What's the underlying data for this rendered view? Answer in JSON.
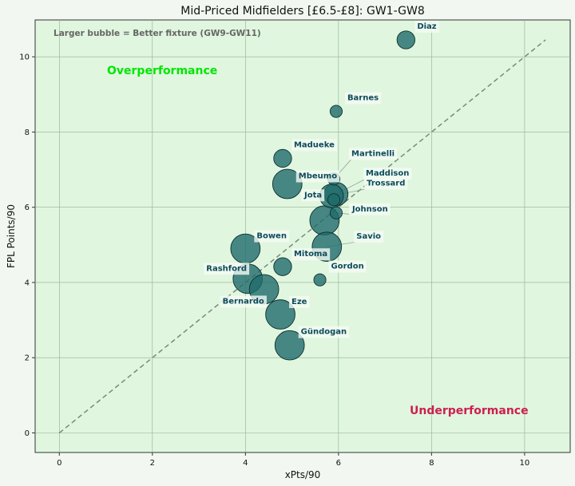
{
  "chart_data": {
    "type": "scatter",
    "title": "Mid-Priced Midfielders [£6.5-£8]: GW1-GW8",
    "xlabel": "xPts/90",
    "ylabel": "FPL Points/90",
    "xlim": [
      -0.52,
      10.98
    ],
    "ylim": [
      -0.52,
      10.98
    ],
    "xticks": [
      0,
      2,
      4,
      6,
      8,
      10
    ],
    "yticks": [
      0,
      2,
      4,
      6,
      8,
      10
    ],
    "grid": true,
    "note": "Larger bubble = Better fixture (GW9-GW11)",
    "region_labels": {
      "over": "Overperformance",
      "under": "Underperformance"
    },
    "reference_line": {
      "style": "dashed",
      "from": [
        0,
        0
      ],
      "to": [
        10.45,
        10.45
      ]
    },
    "colors": {
      "background": "#e0f6df",
      "bubble": "#1f6b6b",
      "label_text": "#0d4a5c",
      "over": "#00e600",
      "under": "#cc1f50",
      "reference": "#7a8a7a"
    },
    "points": [
      {
        "name": "Diaz",
        "x": 7.45,
        "y": 10.45,
        "size": 2
      },
      {
        "name": "Barnes",
        "x": 5.95,
        "y": 8.55,
        "size": 1
      },
      {
        "name": "Madueke",
        "x": 4.8,
        "y": 7.3,
        "size": 2
      },
      {
        "name": "Martinelli",
        "x": 5.9,
        "y": 6.75,
        "size": 1
      },
      {
        "name": "Mbeumo",
        "x": 4.9,
        "y": 6.62,
        "size": 4
      },
      {
        "name": "Maddison",
        "x": 5.95,
        "y": 6.35,
        "size": 3
      },
      {
        "name": "Trossard",
        "x": 5.85,
        "y": 6.3,
        "size": 3
      },
      {
        "name": "Jota",
        "x": 5.9,
        "y": 6.2,
        "size": 1
      },
      {
        "name": "Johnson",
        "x": 5.95,
        "y": 5.85,
        "size": 1
      },
      {
        "name": "",
        "x": 5.7,
        "y": 5.65,
        "size": 4
      },
      {
        "name": "Savio",
        "x": 5.75,
        "y": 4.95,
        "size": 4
      },
      {
        "name": "Bowen",
        "x": 4.0,
        "y": 4.9,
        "size": 4
      },
      {
        "name": "Mitoma",
        "x": 4.8,
        "y": 4.42,
        "size": 2
      },
      {
        "name": "Gordon",
        "x": 5.6,
        "y": 4.07,
        "size": 1
      },
      {
        "name": "Rashford",
        "x": 4.05,
        "y": 4.1,
        "size": 4
      },
      {
        "name": "Bernardo",
        "x": 4.4,
        "y": 3.82,
        "size": 4
      },
      {
        "name": "Eze",
        "x": 4.75,
        "y": 3.15,
        "size": 4
      },
      {
        "name": "Gündogan",
        "x": 4.95,
        "y": 2.33,
        "size": 4
      }
    ]
  }
}
